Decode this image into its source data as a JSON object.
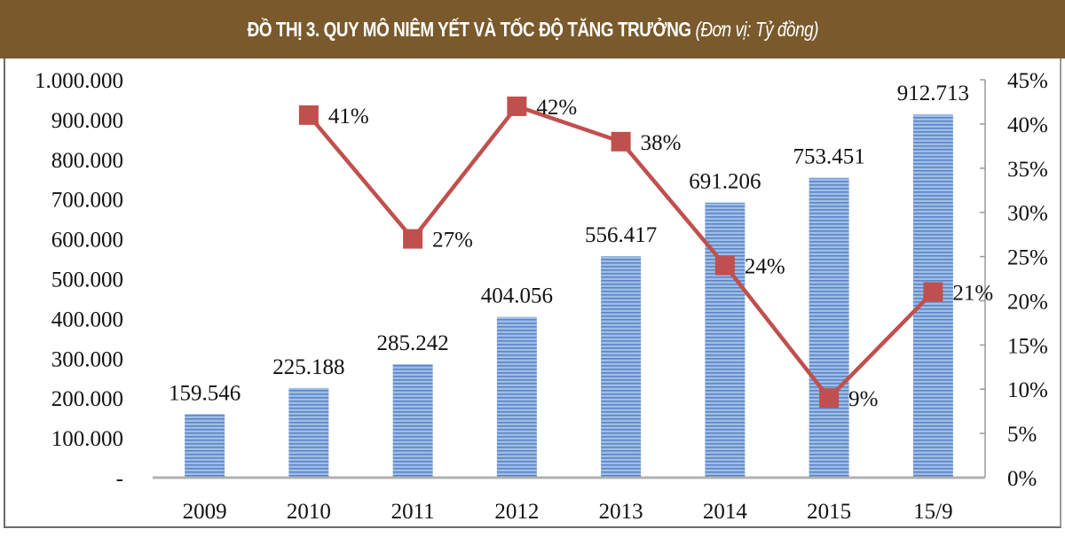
{
  "header": {
    "title": "ĐỒ THỊ 3. QUY MÔ NIÊM YẾT VÀ TỐC ĐỘ TĂNG TRƯỞNG",
    "unit": "(Đơn vị: Tỷ đồng)",
    "background": "#7a5a2c"
  },
  "chart_data": {
    "type": "bar",
    "title": "ĐỒ THỊ 3. QUY MÔ NIÊM YẾT VÀ TỐC ĐỘ TĂNG TRƯỞNG (Đơn vị: Tỷ đồng)",
    "categories": [
      "2009",
      "2010",
      "2011",
      "2012",
      "2013",
      "2014",
      "2015",
      "15/9"
    ],
    "series": [
      {
        "name": "Quy mô niêm yết",
        "type": "bar",
        "axis": "left",
        "color": "#6f9bd8",
        "values": [
          159546,
          225188,
          285242,
          404056,
          556417,
          691206,
          753451,
          912713
        ],
        "labels": [
          "159.546",
          "225.188",
          "285.242",
          "404.056",
          "556.417",
          "691.206",
          "753.451",
          "912.713"
        ]
      },
      {
        "name": "Tốc độ tăng trưởng",
        "type": "line",
        "axis": "right",
        "color": "#c0504d",
        "values": [
          null,
          41,
          27,
          42,
          38,
          24,
          9,
          21
        ],
        "labels": [
          "",
          "41%",
          "27%",
          "42%",
          "38%",
          "24%",
          "9%",
          "21%"
        ]
      }
    ],
    "left_axis": {
      "ylim": [
        0,
        1000000
      ],
      "ticks": [
        "-",
        "100.000",
        "200.000",
        "300.000",
        "400.000",
        "500.000",
        "600.000",
        "700.000",
        "800.000",
        "900.000",
        "1.000.000"
      ]
    },
    "right_axis": {
      "ylim": [
        0,
        45
      ],
      "ticks": [
        "0%",
        "5%",
        "10%",
        "15%",
        "20%",
        "25%",
        "30%",
        "35%",
        "40%",
        "45%"
      ]
    },
    "xlabel": "",
    "ylabel": "",
    "grid": false,
    "legend": "none"
  }
}
